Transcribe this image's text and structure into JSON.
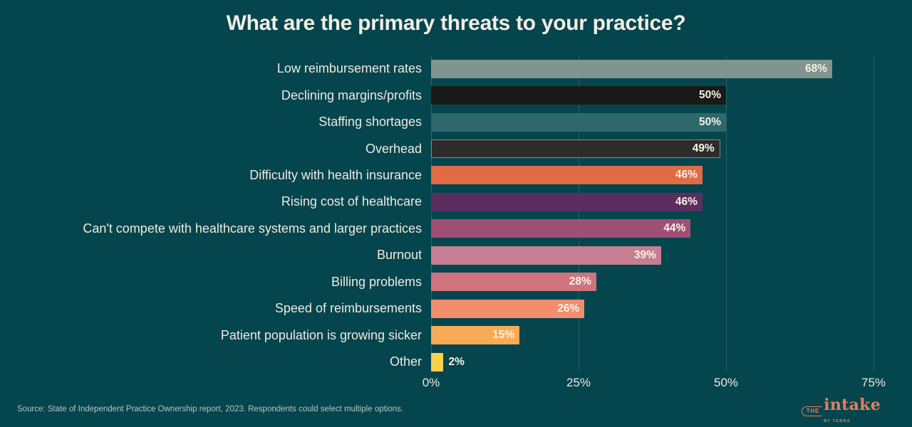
{
  "title": "What are the primary threats to your practice?",
  "colors": {
    "background": "#04454e",
    "grid": "rgba(255,255,255,0.16)",
    "title_text": "#f3eee3",
    "label_text": "#efeade",
    "value_text": "#f7f2e7",
    "source_text": "#b7c5c3",
    "logo": "#e87e5e"
  },
  "chart_data": {
    "type": "bar",
    "orientation": "horizontal",
    "title": "What are the primary threats to your practice?",
    "categories": [
      "Low reimbursement rates",
      "Declining margins/profits",
      "Staffing shortages",
      "Overhead",
      "Difficulty with health insurance",
      "Rising cost of healthcare",
      "Can't compete with healthcare systems and larger practices",
      "Burnout",
      "Billing problems",
      "Speed of reimbursements",
      "Patient population is growing sicker",
      "Other"
    ],
    "values": [
      68,
      50,
      50,
      49,
      46,
      46,
      44,
      39,
      28,
      26,
      15,
      2
    ],
    "value_labels": [
      "68%",
      "50%",
      "50%",
      "49%",
      "46%",
      "46%",
      "44%",
      "39%",
      "28%",
      "26%",
      "15%",
      "2%"
    ],
    "bar_colors": [
      "#7f958d",
      "#191917",
      "#2e686c",
      "#2e2c2a",
      "#e06c46",
      "#5c2e60",
      "#a04f75",
      "#c67e93",
      "#d0737d",
      "#f48d6d",
      "#f8ab57",
      "#fbd14b"
    ],
    "bordered_bar_indices": [
      3
    ],
    "border_color": "rgba(255,255,255,0.45)",
    "x_ticks": [
      {
        "value": 0,
        "label": "0%"
      },
      {
        "value": 25,
        "label": "25%"
      },
      {
        "value": 50,
        "label": "50%"
      },
      {
        "value": 75,
        "label": "75%"
      }
    ],
    "xlim": [
      0,
      76
    ],
    "xlabel": "",
    "ylabel": "",
    "grid": "vertical",
    "legend": "none"
  },
  "footer": {
    "source_note": "Source: State of Independent Practice Ownership report, 2023. Respondents could select multiple options.",
    "logo": {
      "the": "THE",
      "name": "intake",
      "byline": "BY TEBRA"
    }
  }
}
